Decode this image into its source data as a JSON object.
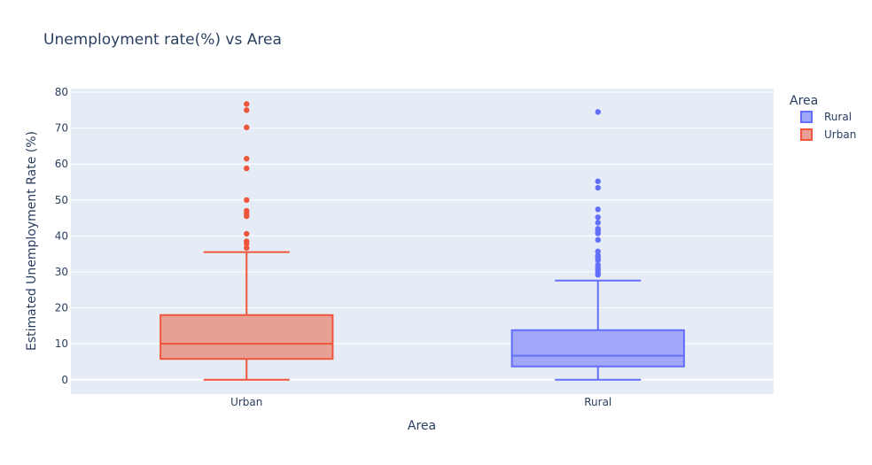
{
  "chart_data": {
    "type": "box",
    "title": "Unemployment rate(%) vs Area",
    "xlabel": "Area",
    "ylabel": "Estimated Unemployment Rate (%)",
    "categories": [
      "Urban",
      "Rural"
    ],
    "ylim": [
      -4,
      81
    ],
    "yticks": [
      0,
      10,
      20,
      30,
      40,
      50,
      60,
      70,
      80
    ],
    "grid": true,
    "legend": {
      "title": "Area",
      "placement": "right",
      "entries": [
        "Rural",
        "Urban"
      ]
    },
    "series": [
      {
        "name": "Urban",
        "color": "#EF553B",
        "fill": "#E8A096",
        "whisker_low": 0,
        "q1": 5.8,
        "median": 10.0,
        "q3": 18.0,
        "whisker_high": 35.5,
        "outliers": [
          36.7,
          37.9,
          38.5,
          40.6,
          45.5,
          46.3,
          47.0,
          50.0,
          58.8,
          61.5,
          70.2,
          75.0,
          76.7
        ]
      },
      {
        "name": "Rural",
        "color": "#636EFA",
        "fill": "#A1A8F9",
        "whisker_low": 0,
        "q1": 3.7,
        "median": 6.7,
        "q3": 13.8,
        "whisker_high": 27.6,
        "outliers": [
          29.2,
          29.8,
          30.5,
          31.2,
          32.0,
          33.3,
          34.0,
          34.6,
          35.7,
          38.9,
          40.7,
          41.4,
          42.0,
          43.7,
          45.2,
          47.4,
          53.4,
          55.2,
          74.5
        ]
      }
    ]
  }
}
